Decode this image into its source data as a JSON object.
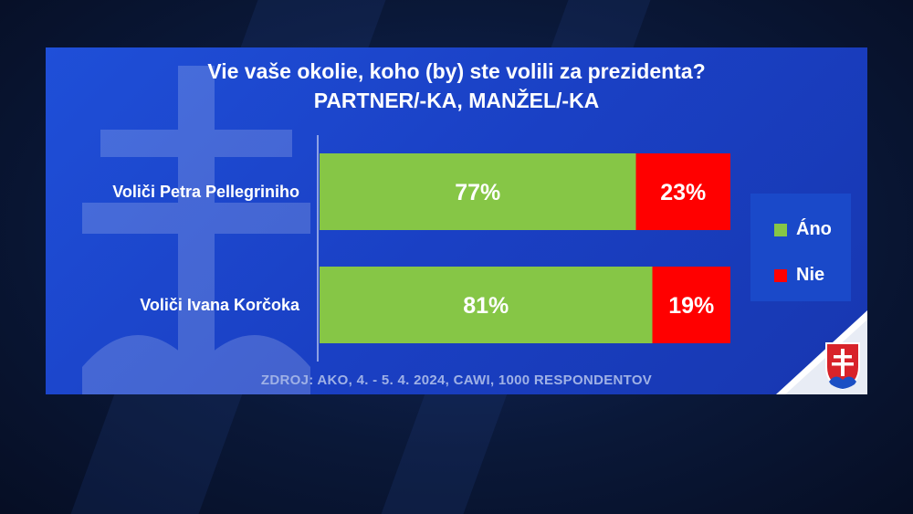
{
  "title": "Vie vaše okolie, koho (by) ste volili za prezidenta?",
  "subtitle": "PARTNER/-KA, MANŽEL/-KA",
  "source": "ZDROJ:   AKO,  4. - 5. 4. 2024,  CAWI,  1000 RESPONDENTOV",
  "colors": {
    "ano": "#86c646",
    "nie": "#ff0000",
    "panel": "#1f4fd8"
  },
  "chart_data": {
    "type": "bar",
    "orientation": "horizontal",
    "stacked": true,
    "categories": [
      "Voliči Petra Pellegriniho",
      "Voliči Ivana Korčoka"
    ],
    "series": [
      {
        "name": "Áno",
        "values": [
          77,
          81
        ],
        "labels": [
          "77%",
          "81%"
        ],
        "color": "#86c646"
      },
      {
        "name": "Nie",
        "values": [
          23,
          19
        ],
        "labels": [
          "23%",
          "19%"
        ],
        "color": "#ff0000"
      }
    ],
    "xlim": [
      0,
      100
    ],
    "legend": "right"
  },
  "legend": {
    "ano": "Áno",
    "nie": "Nie"
  },
  "flag_icon": "slovak-coat-of-arms-icon"
}
